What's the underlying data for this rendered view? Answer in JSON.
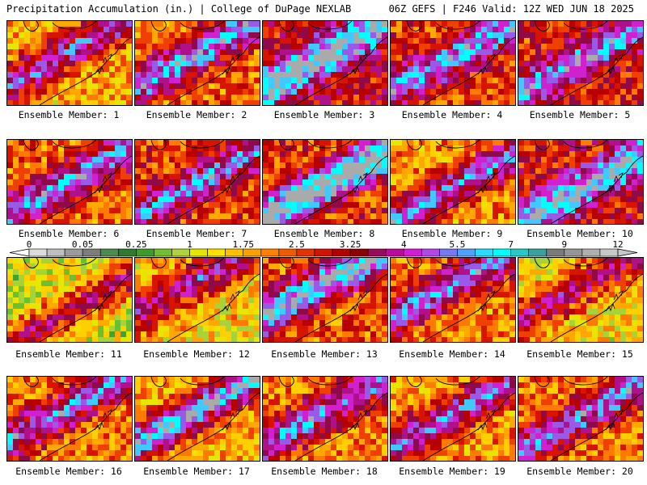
{
  "header": {
    "left": "Precipitation Accumulation (in.) | College of DuPage NEXLAB",
    "right": "06Z GEFS | F246 Valid: 12Z WED JUN 18 2025"
  },
  "colorbar": {
    "tick_labels": [
      "0",
      "0.05",
      "0.25",
      "1",
      "1.75",
      "2.5",
      "3.25",
      "4",
      "5.5",
      "7",
      "9",
      "12"
    ],
    "colors": [
      "#dcdcdc",
      "#bebebe",
      "#9b9b9b",
      "#7d7d7d",
      "#4e8a4e",
      "#2f7a2f",
      "#3c9c2a",
      "#73be2e",
      "#b0d23a",
      "#e6e600",
      "#ffe100",
      "#ffc000",
      "#ffa000",
      "#ff8000",
      "#f25a00",
      "#e63200",
      "#d21400",
      "#b40000",
      "#8c0000",
      "#9a0a5a",
      "#be0a9a",
      "#d21ed2",
      "#b446e6",
      "#7878f0",
      "#50a0ff",
      "#28dcff",
      "#00ffff",
      "#28c8c8",
      "#3ca0a0",
      "#7a7a7a",
      "#969696",
      "#afafaf",
      "#c8c8c8"
    ]
  },
  "panels": [
    {
      "label": "Ensemble Member: 1",
      "wet": 0.45,
      "max": 0.7
    },
    {
      "label": "Ensemble Member: 2",
      "wet": 0.55,
      "max": 0.78
    },
    {
      "label": "Ensemble Member: 3",
      "wet": 0.72,
      "max": 0.86
    },
    {
      "label": "Ensemble Member: 4",
      "wet": 0.62,
      "max": 0.74
    },
    {
      "label": "Ensemble Member: 5",
      "wet": 0.65,
      "max": 0.76
    },
    {
      "label": "Ensemble Member: 6",
      "wet": 0.55,
      "max": 0.74
    },
    {
      "label": "Ensemble Member: 7",
      "wet": 0.6,
      "max": 0.7
    },
    {
      "label": "Ensemble Member: 8",
      "wet": 0.62,
      "max": 0.94
    },
    {
      "label": "Ensemble Member: 9",
      "wet": 0.48,
      "max": 0.74
    },
    {
      "label": "Ensemble Member: 10",
      "wet": 0.68,
      "max": 0.84
    },
    {
      "label": "Ensemble Member: 11",
      "wet": 0.3,
      "max": 0.58
    },
    {
      "label": "Ensemble Member: 12",
      "wet": 0.4,
      "max": 0.66
    },
    {
      "label": "Ensemble Member: 13",
      "wet": 0.58,
      "max": 0.86
    },
    {
      "label": "Ensemble Member: 14",
      "wet": 0.52,
      "max": 0.74
    },
    {
      "label": "Ensemble Member: 15",
      "wet": 0.38,
      "max": 0.62
    },
    {
      "label": "Ensemble Member: 16",
      "wet": 0.52,
      "max": 0.72
    },
    {
      "label": "Ensemble Member: 17",
      "wet": 0.45,
      "max": 0.84
    },
    {
      "label": "Ensemble Member: 18",
      "wet": 0.52,
      "max": 0.72
    },
    {
      "label": "Ensemble Member: 19",
      "wet": 0.48,
      "max": 0.7
    },
    {
      "label": "Ensemble Member: 20",
      "wet": 0.52,
      "max": 0.74
    }
  ]
}
